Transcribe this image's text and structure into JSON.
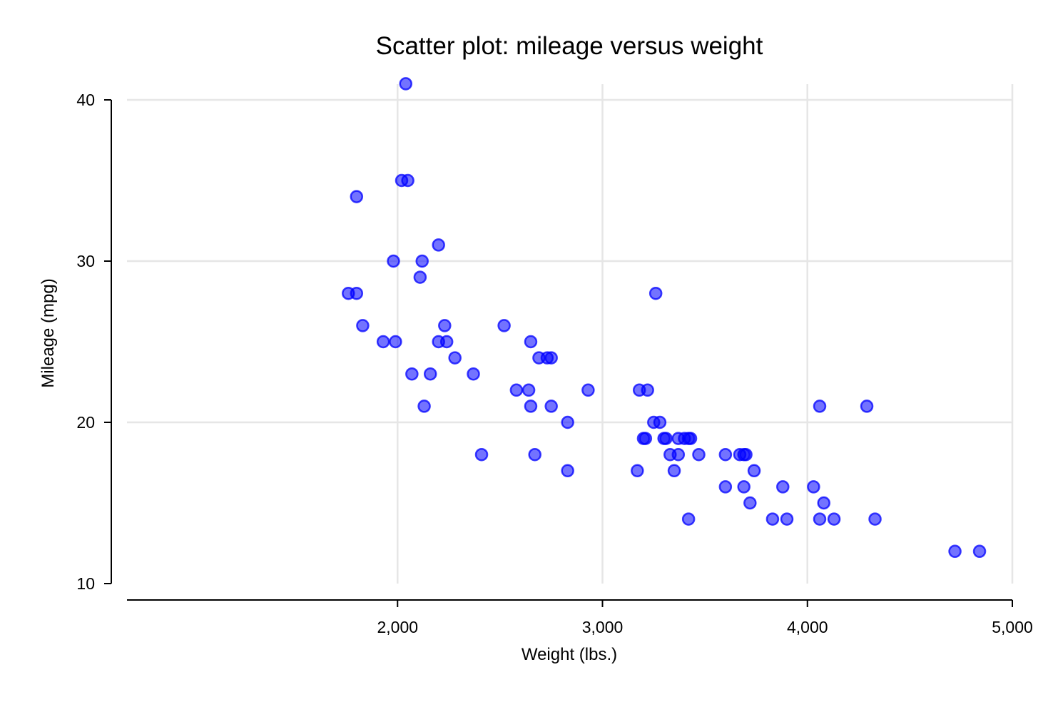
{
  "chart_data": {
    "type": "scatter",
    "title": "Scatter plot: mileage versus weight",
    "xlabel": "Weight (lbs.)",
    "ylabel": "Mileage (mpg)",
    "xlim": [
      1760,
      5000
    ],
    "ylim": [
      10,
      41
    ],
    "xticks": [
      2000,
      3000,
      4000,
      5000
    ],
    "xtick_labels": [
      "2,000",
      "3,000",
      "4,000",
      "5,000"
    ],
    "yticks": [
      10,
      20,
      30,
      40
    ],
    "ytick_labels": [
      "10",
      "20",
      "30",
      "40"
    ],
    "grid": true,
    "legend": "none",
    "marker_color": "#0000ff",
    "marker_fill_opacity": 0.55,
    "points": [
      [
        1760,
        28
      ],
      [
        1800,
        28
      ],
      [
        1800,
        34
      ],
      [
        1830,
        26
      ],
      [
        1930,
        25
      ],
      [
        1980,
        30
      ],
      [
        1990,
        25
      ],
      [
        2020,
        35
      ],
      [
        2040,
        41
      ],
      [
        2050,
        35
      ],
      [
        2070,
        23
      ],
      [
        2110,
        29
      ],
      [
        2120,
        30
      ],
      [
        2130,
        21
      ],
      [
        2160,
        23
      ],
      [
        2200,
        31
      ],
      [
        2200,
        25
      ],
      [
        2230,
        26
      ],
      [
        2240,
        25
      ],
      [
        2280,
        24
      ],
      [
        2370,
        23
      ],
      [
        2410,
        18
      ],
      [
        2520,
        26
      ],
      [
        2580,
        22
      ],
      [
        2640,
        22
      ],
      [
        2650,
        25
      ],
      [
        2650,
        21
      ],
      [
        2670,
        18
      ],
      [
        2690,
        24
      ],
      [
        2730,
        24
      ],
      [
        2750,
        24
      ],
      [
        2750,
        21
      ],
      [
        2830,
        20
      ],
      [
        2830,
        17
      ],
      [
        2930,
        22
      ],
      [
        3170,
        17
      ],
      [
        3180,
        22
      ],
      [
        3200,
        19
      ],
      [
        3210,
        19
      ],
      [
        3220,
        22
      ],
      [
        3250,
        20
      ],
      [
        3260,
        28
      ],
      [
        3280,
        20
      ],
      [
        3300,
        19
      ],
      [
        3310,
        19
      ],
      [
        3330,
        18
      ],
      [
        3350,
        17
      ],
      [
        3370,
        19
      ],
      [
        3370,
        18
      ],
      [
        3400,
        19
      ],
      [
        3420,
        14
      ],
      [
        3420,
        19
      ],
      [
        3430,
        19
      ],
      [
        3470,
        18
      ],
      [
        3600,
        18
      ],
      [
        3600,
        16
      ],
      [
        3670,
        18
      ],
      [
        3690,
        18
      ],
      [
        3690,
        16
      ],
      [
        3700,
        18
      ],
      [
        3720,
        15
      ],
      [
        3740,
        17
      ],
      [
        3830,
        14
      ],
      [
        3880,
        16
      ],
      [
        3900,
        14
      ],
      [
        4030,
        16
      ],
      [
        4060,
        21
      ],
      [
        4060,
        14
      ],
      [
        4080,
        15
      ],
      [
        4130,
        14
      ],
      [
        4290,
        21
      ],
      [
        4330,
        14
      ],
      [
        4720,
        12
      ],
      [
        4840,
        12
      ]
    ]
  }
}
